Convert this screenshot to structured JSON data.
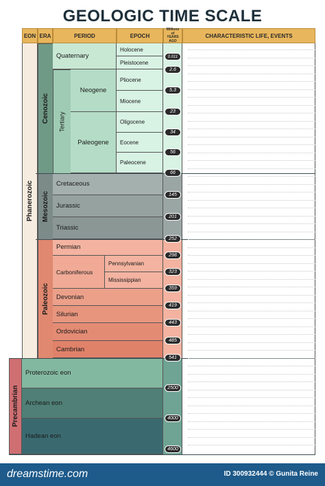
{
  "title": "GEOLOGIC TIME SCALE",
  "headers": {
    "eon": "EON",
    "era": "ERA",
    "period": "PERIOD",
    "epoch": "EPOCH",
    "myago_1": "Millions",
    "myago_2": "of",
    "myago_3": "YEARS",
    "myago_4": "AGO",
    "life": "CHARACTERISTIC LIFE, EVENTS"
  },
  "eons": {
    "phanerozoic": "Phanerozoic",
    "precambrian": "Precambrian"
  },
  "eras": {
    "cenozoic": "Cenozoic",
    "mesozoic": "Mesozoic",
    "paleozoic": "Paleozoic"
  },
  "subperiods": {
    "tertiary": "Tertiary"
  },
  "periods": {
    "quaternary": "Quaternary",
    "neogene": "Neogene",
    "paleogene": "Paleogene",
    "cretaceous": "Cretaceous",
    "jurassic": "Jurassic",
    "triassic": "Triassic",
    "permian": "Permian",
    "carboniferous": "Carboniferous",
    "devonian": "Devonian",
    "silurian": "Silurian",
    "ordovician": "Ordovician",
    "cambrian": "Cambrian"
  },
  "epochs": {
    "holocene": "Holocene",
    "pleistocene": "Pleistocene",
    "pliocene": "Pliocene",
    "miocene": "Miocene",
    "oligocene": "Oligocene",
    "eocene": "Eocene",
    "paleocene": "Paleocene",
    "pennsylvanian": "Pennsylvanian",
    "mississippian": "Mississippian"
  },
  "precambrian_eons": {
    "proterozoic": "Proterozoic eon",
    "archean": "Archean eon",
    "hadean": "Hadean eon"
  },
  "ages": {
    "a0011": "0.011",
    "a26": "2.6",
    "a53": "5.3",
    "a23": "23",
    "a34": "34",
    "a56": "56",
    "a66": "66",
    "a145": "145",
    "a201": "201",
    "a252": "252",
    "a298": "298",
    "a323": "323",
    "a359": "359",
    "a419": "419",
    "a443": "443",
    "a485": "485",
    "a541": "541",
    "a2500": "2500",
    "a4000": "4000",
    "a4600": "4600"
  },
  "footer": {
    "brand": "dreamstime.com",
    "id_text": "ID 300932444 © Gunita Reine"
  },
  "colors": {
    "header": "#e8b65c",
    "cenozoic": "#6f9a86",
    "tertiary": "#9fcbb4",
    "neogene": "#b4dcc6",
    "quaternary": "#c8e8d4",
    "epoch_light": "#d8f2e4",
    "mesozoic": "#7d8b88",
    "paleozoic": "#e08870",
    "proterozoic": "#83b8a0",
    "archean": "#4f7f76",
    "hadean": "#3a6a70",
    "precambrian_eon": "#cf6f72",
    "phanerozoic_eon": "#f7ece0",
    "footer": "#1e5a8a"
  }
}
